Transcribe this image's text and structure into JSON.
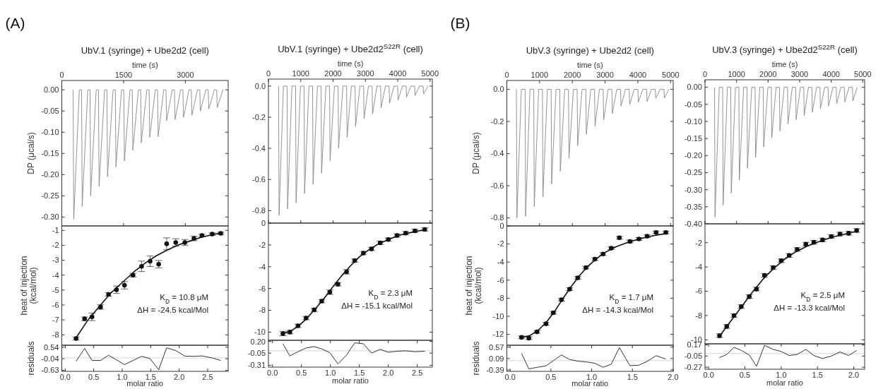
{
  "chart_data": [
    {
      "type": "line",
      "title": "UbV.1 (syringe) + Ube2d2 (cell)",
      "xlabel": "time (s)",
      "ylabel": "DP (μcal/s)",
      "annotations": [
        "(A)"
      ],
      "xlim": [
        0,
        4040
      ],
      "xticks": [
        0,
        1500,
        3000
      ],
      "ylim": [
        -0.321,
        0.022
      ],
      "yticks": [
        {
          "value": 0,
          "label": "0.00"
        },
        -0.05,
        {
          "value": -0.1,
          "label": "-0.10"
        },
        -0.15,
        {
          "value": -0.2,
          "label": "-0.20"
        },
        -0.25,
        {
          "value": -0.3,
          "label": "-0.30"
        }
      ],
      "series": [
        {
          "color": "#888888",
          "x": [
            275,
            290,
            425,
            480,
            495,
            630,
            685,
            700,
            835,
            890,
            905,
            1040,
            1095,
            1110,
            1245,
            1300,
            1315,
            1450,
            1505,
            1520,
            1655,
            1710,
            1725,
            1860,
            1915,
            1930,
            2065,
            2120,
            2135,
            2270,
            2325,
            2340,
            2475,
            2530,
            2545,
            2680,
            2735,
            2750,
            2885,
            2940,
            2955,
            3090,
            3145,
            3160,
            3295,
            3350,
            3365,
            3500,
            3555,
            3570,
            3705,
            3760,
            3775,
            3910
          ],
          "values": [
            0,
            -0.305,
            0,
            0,
            -0.275,
            0,
            0,
            -0.25,
            0,
            0,
            -0.228,
            0,
            0,
            -0.205,
            0,
            0,
            -0.182,
            0,
            0,
            -0.168,
            0,
            0,
            -0.143,
            0,
            0,
            -0.125,
            0,
            0,
            -0.112,
            0,
            0,
            -0.11,
            0,
            0,
            -0.073,
            0,
            0,
            -0.07,
            0,
            0,
            -0.065,
            0,
            0,
            -0.06,
            0,
            0,
            -0.05,
            0,
            0,
            -0.045,
            0,
            0,
            -0.042,
            0
          ]
        }
      ]
    },
    {
      "type": "scatter",
      "ylabel": "heat of injection (kcal/mol)",
      "annotations": [
        "K$_{D}$ = 10.8 μM",
        "ΔH = -24.5 kcal/Mol"
      ],
      "tick_labels": "y",
      "xlim": [
        -0.06,
        2.86
      ],
      "ylim": [
        -8.7,
        -0.7
      ],
      "yticks": [
        -1,
        -2,
        -3,
        -4,
        -5,
        -6,
        -7,
        -8
      ],
      "series": [
        {
          "color": "#111111",
          "marker": "circle",
          "x": [
            0.19,
            0.34,
            0.47,
            0.62,
            0.76,
            0.9,
            1.04,
            1.19,
            1.34,
            1.49,
            1.64,
            1.78,
            1.94,
            2.1,
            2.26,
            2.4,
            2.58,
            2.73
          ],
          "values": [
            -8.25,
            -6.93,
            -6.8,
            -6.14,
            -5.29,
            -4.98,
            -4.68,
            -4.0,
            -3.41,
            -3.07,
            -3.27,
            -1.9,
            -1.81,
            -1.81,
            -1.54,
            -1.34,
            -1.25,
            -1.2
          ],
          "errors": [
            0.1,
            0.12,
            0.25,
            0.15,
            0.12,
            0.25,
            0.25,
            0.12,
            0.35,
            0.35,
            0.25,
            0.4,
            0.25,
            0.2,
            0.15,
            0.08,
            0.08,
            0.08
          ]
        },
        {
          "type": "line",
          "color": "#111111",
          "x": [
            0.19,
            0.4,
            0.6,
            0.8,
            1.0,
            1.2,
            1.4,
            1.6,
            1.8,
            2.0,
            2.2,
            2.4,
            2.6,
            2.75
          ],
          "values": [
            -8.2,
            -7.0,
            -6.1,
            -5.2,
            -4.5,
            -3.8,
            -3.2,
            -2.7,
            -2.3,
            -1.95,
            -1.7,
            -1.45,
            -1.28,
            -1.15
          ]
        }
      ]
    },
    {
      "type": "line",
      "xlabel": "molar ratio",
      "ylabel": "residuals",
      "xlim": [
        -0.06,
        2.86
      ],
      "xticks": [
        {
          "value": 0,
          "label": "0.0"
        },
        0.5,
        {
          "value": 1,
          "label": "1.0"
        },
        1.5,
        {
          "value": 2,
          "label": "2.0"
        },
        2.5
      ],
      "ylim": [
        -0.68,
        0.64
      ],
      "yticks": [
        0.54,
        -0.04,
        -0.63
      ],
      "ref_lines": [
        {
          "axis": "y",
          "value": 0,
          "color": "#cccccc"
        }
      ],
      "series": [
        {
          "color": "#333333",
          "x": [
            0.19,
            0.34,
            0.47,
            0.62,
            0.76,
            0.9,
            1.04,
            1.19,
            1.34,
            1.49,
            1.64,
            1.78,
            1.94,
            2.1,
            2.26,
            2.4,
            2.58,
            2.73
          ],
          "values": [
            -0.17,
            0.48,
            -0.13,
            -0.13,
            0.13,
            -0.1,
            -0.34,
            -0.13,
            0.08,
            -0.04,
            -0.6,
            0.51,
            0.37,
            0.09,
            0.08,
            0.1,
            0,
            -0.13
          ]
        }
      ]
    },
    {
      "type": "line",
      "title": "UbV.1 (syringe) + Ube2d2$^{S22R}$ (cell)",
      "xlabel": "time (s)",
      "xlim": [
        0,
        5070
      ],
      "xticks": [
        0,
        1000,
        2000,
        3000,
        4000,
        5000
      ],
      "ylim": [
        -0.88,
        0.045
      ],
      "yticks": [
        {
          "value": 0,
          "label": "0.0"
        },
        -0.2,
        -0.4,
        -0.6,
        -0.8
      ],
      "series": [
        {
          "color": "#888888",
          "x": [
            314,
            329,
            464,
            577,
            592,
            727,
            840,
            855,
            990,
            1103,
            1118,
            1253,
            1366,
            1381,
            1516,
            1629,
            1644,
            1779,
            1892,
            1907,
            2042,
            2155,
            2170,
            2305,
            2418,
            2433,
            2568,
            2681,
            2696,
            2831,
            2944,
            2959,
            3094,
            3207,
            3222,
            3357,
            3470,
            3485,
            3620,
            3733,
            3748,
            3883,
            3996,
            4011,
            4146,
            4259,
            4274,
            4409,
            4522,
            4537,
            4672,
            4785,
            4800,
            4935
          ],
          "values": [
            0,
            -0.83,
            0,
            0,
            -0.79,
            0,
            0,
            -0.75,
            0,
            0,
            -0.69,
            0,
            0,
            -0.63,
            0,
            0,
            -0.56,
            0,
            0,
            -0.48,
            0,
            0,
            -0.4,
            0,
            0,
            -0.33,
            0,
            0,
            -0.26,
            0,
            0,
            -0.21,
            0,
            0,
            -0.18,
            0,
            0,
            -0.14,
            0,
            0,
            -0.11,
            0,
            0,
            -0.09,
            0,
            0,
            -0.07,
            0,
            0,
            -0.06,
            0,
            0,
            -0.05,
            0
          ]
        }
      ]
    },
    {
      "type": "scatter",
      "annotations": [
        "K$_{D}$ = 2.3 μM",
        "ΔH = -15.1 kcal/Mol"
      ],
      "tick_labels": "y",
      "xlim": [
        -0.07,
        2.76
      ],
      "ylim": [
        -10.75,
        0
      ],
      "yticks": [
        0,
        -2,
        -4,
        -6,
        -8,
        -10
      ],
      "series": [
        {
          "color": "#111111",
          "marker": "circle",
          "x": [
            0.18,
            0.3,
            0.44,
            0.58,
            0.72,
            0.85,
            0.99,
            1.13,
            1.28,
            1.42,
            1.57,
            1.71,
            1.86,
            2.0,
            2.15,
            2.3,
            2.46,
            2.63
          ],
          "values": [
            -10.13,
            -10.0,
            -9.42,
            -8.71,
            -7.96,
            -7.16,
            -6.34,
            -5.61,
            -4.47,
            -3.44,
            -2.75,
            -2.37,
            -1.81,
            -1.51,
            -1.14,
            -0.92,
            -0.71,
            -0.58
          ],
          "errors": [
            0.2,
            0.15,
            0.15,
            0.15,
            0.15,
            0.15,
            0.2,
            0.15,
            0.2,
            0.15,
            0.15,
            0.15,
            0.15,
            0.15,
            0.15,
            0.15,
            0.15,
            0.15
          ]
        },
        {
          "type": "line",
          "color": "#111111",
          "x": [
            0.15,
            0.3,
            0.45,
            0.6,
            0.75,
            0.9,
            1.05,
            1.2,
            1.35,
            1.5,
            1.65,
            1.8,
            2.0,
            2.2,
            2.4,
            2.63
          ],
          "values": [
            -10.15,
            -9.95,
            -9.45,
            -8.7,
            -7.8,
            -6.85,
            -5.8,
            -4.8,
            -3.9,
            -3.1,
            -2.5,
            -2.0,
            -1.5,
            -1.1,
            -0.85,
            -0.6
          ]
        }
      ]
    },
    {
      "type": "line",
      "xlabel": "molar ratio",
      "xlim": [
        -0.07,
        2.76
      ],
      "xticks": [
        {
          "value": 0,
          "label": "0.0"
        },
        0.5,
        {
          "value": 1,
          "label": "1.0"
        },
        1.5,
        {
          "value": 2,
          "label": "2.0"
        },
        2.5
      ],
      "ylim": [
        -0.35,
        0.225
      ],
      "yticks": [
        {
          "value": 0.2,
          "label": "0.20"
        },
        -0.05,
        -0.31
      ],
      "ref_lines": [
        {
          "axis": "y",
          "value": 0,
          "color": "#cccccc"
        }
      ],
      "series": [
        {
          "color": "#333333",
          "x": [
            0.18,
            0.3,
            0.44,
            0.58,
            0.72,
            0.85,
            0.99,
            1.13,
            1.28,
            1.42,
            1.57,
            1.71,
            1.86,
            2.0,
            2.15,
            2.3,
            2.46,
            2.63
          ],
          "values": [
            0.15,
            -0.11,
            -0.02,
            0.06,
            0.09,
            0.04,
            -0.04,
            -0.28,
            -0.09,
            0.17,
            0.15,
            -0.05,
            0.03,
            -0.03,
            -0.01,
            0,
            -0.02,
            -0.01
          ]
        }
      ]
    },
    {
      "type": "line",
      "title": "UbV.3 (syringe) + Ube2d2 (cell)",
      "xlabel": "time (s)",
      "ylabel": "DP (μcal/s)",
      "annotations": [
        "(B)"
      ],
      "xlim": [
        0,
        5080
      ],
      "xticks": [
        0,
        1000,
        2000,
        3000,
        4000,
        5000
      ],
      "ylim": [
        -0.85,
        0.055
      ],
      "yticks": [
        {
          "value": 0,
          "label": "0.0"
        },
        -0.2,
        -0.4,
        -0.6,
        -0.8
      ],
      "series": [
        {
          "color": "#888888",
          "x": [
            292,
            307,
            442,
            557,
            572,
            707,
            822,
            837,
            972,
            1087,
            1102,
            1237,
            1352,
            1367,
            1502,
            1617,
            1632,
            1767,
            1882,
            1897,
            2032,
            2147,
            2162,
            2297,
            2412,
            2427,
            2562,
            2677,
            2692,
            2827,
            2942,
            2957,
            3092,
            3207,
            3222,
            3357,
            3472,
            3487,
            3622,
            3737,
            3752,
            3887,
            4002,
            4017,
            4152,
            4267,
            4282,
            4417,
            4532,
            4547,
            4682,
            4797,
            4812,
            4947
          ],
          "values": [
            0,
            -0.8,
            0,
            0,
            -0.79,
            0,
            0,
            -0.73,
            0,
            0,
            -0.67,
            0,
            0,
            -0.59,
            0,
            0,
            -0.51,
            0,
            0,
            -0.43,
            0,
            0,
            -0.35,
            0,
            0,
            -0.28,
            0,
            0,
            -0.23,
            0,
            0,
            -0.19,
            0,
            0,
            -0.15,
            0,
            0,
            -0.105,
            0,
            0,
            -0.095,
            0,
            0,
            -0.08,
            0,
            0,
            -0.075,
            0,
            0,
            -0.055,
            0,
            0,
            -0.055,
            0
          ]
        }
      ]
    },
    {
      "type": "scatter",
      "ylabel": "heat of injection (kcal/mol)",
      "annotations": [
        "K$_{D}$ = 1.7 μM",
        "ΔH = -14.3 kcal/Mol"
      ],
      "tick_labels": "y",
      "xlim": [
        -0.04,
        2.0
      ],
      "ylim": [
        -13.2,
        0
      ],
      "yticks": [
        0,
        -2,
        -4,
        -6,
        -8,
        -10,
        -12
      ],
      "series": [
        {
          "color": "#111111",
          "marker": "circle",
          "x": [
            0.14,
            0.23,
            0.33,
            0.44,
            0.53,
            0.63,
            0.73,
            0.83,
            0.93,
            1.04,
            1.14,
            1.24,
            1.34,
            1.47,
            1.58,
            1.68,
            1.79,
            1.91
          ],
          "values": [
            -12.33,
            -12.42,
            -11.72,
            -10.83,
            -9.61,
            -8.17,
            -7.0,
            -5.75,
            -4.61,
            -3.67,
            -3.11,
            -2.47,
            -1.31,
            -1.72,
            -1.44,
            -1.14,
            -0.72,
            -0.72
          ],
          "errors": [
            0.15,
            0.15,
            0.15,
            0.15,
            0.15,
            0.15,
            0.15,
            0.15,
            0.15,
            0.15,
            0.15,
            0.15,
            0.15,
            0.15,
            0.15,
            0.15,
            0.15,
            0.15
          ]
        },
        {
          "type": "line",
          "color": "#111111",
          "x": [
            0.14,
            0.25,
            0.35,
            0.45,
            0.55,
            0.65,
            0.75,
            0.85,
            0.95,
            1.05,
            1.15,
            1.3,
            1.45,
            1.6,
            1.75,
            1.91
          ],
          "values": [
            -12.35,
            -12.1,
            -11.5,
            -10.6,
            -9.4,
            -8.0,
            -6.7,
            -5.5,
            -4.5,
            -3.7,
            -3.0,
            -2.3,
            -1.8,
            -1.4,
            -1.1,
            -0.85
          ]
        }
      ]
    },
    {
      "type": "line",
      "xlabel": "molar ratio",
      "ylabel": "residuals",
      "xlim": [
        -0.04,
        2.0
      ],
      "xticks": [
        {
          "value": 0,
          "label": "0.0"
        },
        0.5,
        {
          "value": 1,
          "label": "1.0"
        },
        1.5,
        {
          "value": 2,
          "label": "2.0"
        }
      ],
      "ylim": [
        -0.45,
        0.65
      ],
      "yticks": [
        0.57,
        0.09,
        -0.39
      ],
      "ref_lines": [
        {
          "axis": "y",
          "value": 0,
          "color": "#cccccc"
        }
      ],
      "series": [
        {
          "color": "#333333",
          "x": [
            0.14,
            0.23,
            0.33,
            0.44,
            0.53,
            0.63,
            0.73,
            0.83,
            0.93,
            1.04,
            1.14,
            1.24,
            1.34,
            1.47,
            1.58,
            1.68,
            1.79,
            1.91
          ],
          "values": [
            0.31,
            -0.35,
            -0.28,
            -0.22,
            0,
            0.24,
            0.05,
            -0.02,
            -0.05,
            -0.11,
            -0.28,
            -0.15,
            0.55,
            -0.21,
            -0.19,
            -0.03,
            0.21,
            0.07
          ]
        }
      ]
    },
    {
      "type": "line",
      "title": "UbV.3 (syringe) + Ube2d2$^{S22R}$ (cell)",
      "xlabel": "time (s)",
      "xlim": [
        0,
        5060
      ],
      "xticks": [
        0,
        1000,
        2000,
        3000,
        4000,
        5000
      ],
      "ylim": [
        -0.4,
        0.022
      ],
      "yticks": [
        {
          "value": 0,
          "label": "0.00"
        },
        -0.05,
        {
          "value": -0.1,
          "label": "-0.10"
        },
        -0.15,
        {
          "value": -0.2,
          "label": "-0.20"
        },
        -0.25,
        {
          "value": -0.3,
          "label": "-0.30"
        },
        -0.35,
        {
          "value": -0.4,
          "label": "-0.40"
        }
      ],
      "series": [
        {
          "color": "#888888",
          "x": [
            303,
            318,
            453,
            560,
            575,
            710,
            817,
            832,
            967,
            1074,
            1089,
            1224,
            1331,
            1346,
            1481,
            1588,
            1603,
            1738,
            1845,
            1860,
            1995,
            2102,
            2117,
            2252,
            2359,
            2374,
            2509,
            2616,
            2631,
            2766,
            2873,
            2888,
            3023,
            3130,
            3145,
            3280,
            3387,
            3402,
            3537,
            3644,
            3659,
            3794,
            3901,
            3916,
            4051,
            4158,
            4173,
            4308,
            4415,
            4430,
            4565,
            4672,
            4687,
            4822
          ],
          "values": [
            0,
            -0.38,
            0,
            0,
            -0.345,
            0,
            0,
            -0.31,
            0,
            0,
            -0.272,
            0,
            0,
            -0.237,
            0,
            0,
            -0.205,
            0,
            0,
            -0.175,
            0,
            0,
            -0.148,
            0,
            0,
            -0.128,
            0,
            0,
            -0.108,
            0,
            0,
            -0.095,
            0,
            0,
            -0.083,
            0,
            0,
            -0.073,
            0,
            0,
            -0.063,
            0,
            0,
            -0.055,
            0,
            0,
            -0.048,
            0,
            0,
            -0.043,
            0,
            0,
            -0.04,
            0
          ]
        }
      ]
    },
    {
      "type": "scatter",
      "annotations": [
        "K$_{D}$ = 2.5 μM",
        "ΔH = -13.3 kcal/Mol"
      ],
      "tick_labels": "y",
      "xlim": [
        -0.05,
        2.15
      ],
      "ylim": [
        -10.33,
        -0.44
      ],
      "yticks": [
        -2,
        -4,
        -6,
        -8,
        -10
      ],
      "series": [
        {
          "color": "#111111",
          "marker": "circle",
          "x": [
            0.15,
            0.25,
            0.35,
            0.45,
            0.56,
            0.66,
            0.77,
            0.89,
            1.0,
            1.11,
            1.22,
            1.34,
            1.45,
            1.57,
            1.69,
            1.81,
            1.93,
            2.04
          ],
          "values": [
            -9.66,
            -8.9,
            -8.0,
            -7.26,
            -6.44,
            -5.82,
            -4.69,
            -4.05,
            -3.48,
            -3.05,
            -2.55,
            -2.12,
            -1.96,
            -1.77,
            -1.49,
            -1.28,
            -1.22,
            -0.99
          ],
          "errors": [
            0.15,
            0.15,
            0.15,
            0.15,
            0.15,
            0.15,
            0.15,
            0.15,
            0.15,
            0.15,
            0.15,
            0.15,
            0.15,
            0.15,
            0.15,
            0.15,
            0.15,
            0.15
          ]
        },
        {
          "type": "line",
          "color": "#111111",
          "x": [
            0.15,
            0.3,
            0.45,
            0.6,
            0.75,
            0.9,
            1.05,
            1.2,
            1.35,
            1.5,
            1.7,
            1.9,
            2.04
          ],
          "values": [
            -9.7,
            -8.5,
            -7.3,
            -6.1,
            -5.0,
            -4.1,
            -3.35,
            -2.75,
            -2.3,
            -1.95,
            -1.55,
            -1.25,
            -1.05
          ]
        }
      ]
    },
    {
      "type": "line",
      "xlabel": "molar ratio",
      "xlim": [
        -0.05,
        2.15
      ],
      "xticks": [
        {
          "value": 0,
          "label": "0.0"
        },
        0.5,
        {
          "value": 1,
          "label": "1.0"
        },
        1.5,
        {
          "value": 2,
          "label": "2.0"
        }
      ],
      "ylim": [
        -0.31,
        0.19
      ],
      "yticks": [
        0.17,
        -0.05,
        -0.27
      ],
      "ref_lines": [
        {
          "axis": "y",
          "value": 0,
          "color": "#cccccc"
        }
      ],
      "series": [
        {
          "color": "#333333",
          "x": [
            0.15,
            0.25,
            0.35,
            0.45,
            0.56,
            0.66,
            0.77,
            0.89,
            1.0,
            1.11,
            1.22,
            1.34,
            1.45,
            1.57,
            1.69,
            1.81,
            1.93,
            2.04
          ],
          "values": [
            -0.08,
            -0.02,
            0.12,
            0.06,
            -0.03,
            -0.25,
            0.16,
            0.08,
            0.04,
            -0.04,
            -0.02,
            0.08,
            -0.04,
            -0.1,
            -0.05,
            0.03,
            -0.04,
            0.06
          ]
        }
      ]
    }
  ]
}
